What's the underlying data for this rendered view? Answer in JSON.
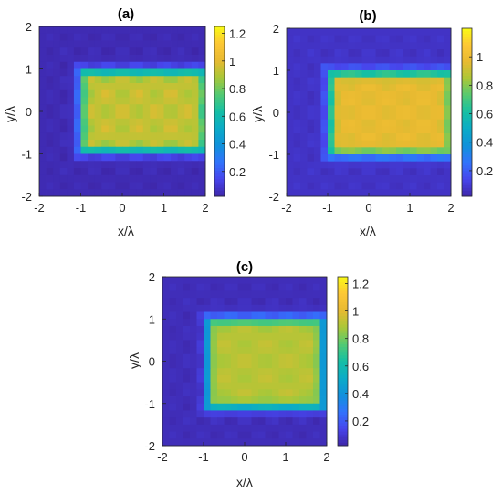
{
  "chart_data": [
    {
      "type": "heatmap",
      "title": "(a)",
      "xlabel": "x/λ",
      "ylabel": "y/λ",
      "xlim": [
        -2,
        2
      ],
      "ylim": [
        -2,
        2
      ],
      "xticks": [
        "-2",
        "-1",
        "0",
        "1",
        "2"
      ],
      "yticks": [
        "2",
        "1",
        "0",
        "-1",
        "-2"
      ],
      "colorbar": {
        "range": [
          0.02,
          1.25
        ],
        "ticks": [
          "1.2",
          "1",
          "0.8",
          "0.6",
          "0.4",
          "0.2"
        ],
        "tick_values": [
          1.2,
          1.0,
          0.8,
          0.6,
          0.4,
          0.2
        ]
      },
      "grid": [
        24,
        24
      ],
      "rect": {
        "x": [
          -1.0,
          2.0
        ],
        "y": [
          -0.95,
          0.95
        ]
      },
      "peak": 0.95,
      "ripple": 0.1,
      "ripple_xy": [
        8,
        8
      ],
      "bg": 0.04
    },
    {
      "type": "heatmap",
      "title": "(b)",
      "xlabel": "x/λ",
      "ylabel": "y/λ",
      "xlim": [
        -2,
        2
      ],
      "ylim": [
        -2,
        2
      ],
      "xticks": [
        "-2",
        "-1",
        "0",
        "1",
        "2"
      ],
      "yticks": [
        "2",
        "1",
        "0",
        "-1",
        "-2"
      ],
      "colorbar": {
        "range": [
          0.02,
          1.2
        ],
        "ticks": [
          "1",
          "0.8",
          "0.6",
          "0.4",
          "0.2"
        ],
        "tick_values": [
          1.0,
          0.8,
          0.6,
          0.4,
          0.2
        ]
      },
      "grid": [
        24,
        24
      ],
      "rect": {
        "x": [
          -0.95,
          2.0
        ],
        "y": [
          -1.0,
          0.95
        ]
      },
      "peak": 0.98,
      "ripple": 0.06,
      "ripple_xy": [
        7,
        10
      ],
      "bg": 0.07
    },
    {
      "type": "heatmap",
      "title": "(c)",
      "xlabel": "x/λ",
      "ylabel": "y/λ",
      "xlim": [
        -2,
        2
      ],
      "ylim": [
        -2,
        2
      ],
      "xticks": [
        "-2",
        "-1",
        "0",
        "1",
        "2"
      ],
      "yticks": [
        "2",
        "1",
        "0",
        "-1",
        "-2"
      ],
      "colorbar": {
        "range": [
          0.02,
          1.25
        ],
        "ticks": [
          "1.2",
          "1",
          "0.8",
          "0.6",
          "0.4",
          "0.2"
        ],
        "tick_values": [
          1.2,
          1.0,
          0.8,
          0.6,
          0.4,
          0.2
        ]
      },
      "grid": [
        24,
        24
      ],
      "rect": {
        "x": [
          -0.9,
          1.9
        ],
        "y": [
          -1.1,
          1.0
        ]
      },
      "peak": 0.92,
      "ripple": 0.06,
      "ripple_xy": [
        6,
        8
      ],
      "bg": 0.05
    }
  ]
}
